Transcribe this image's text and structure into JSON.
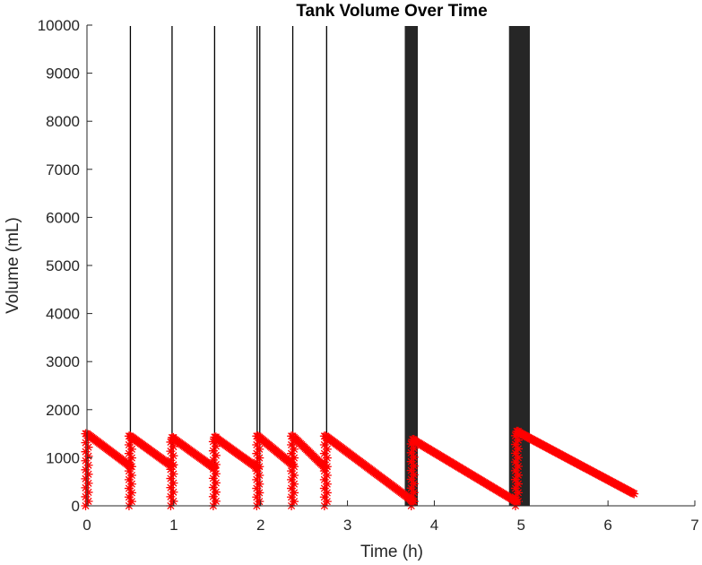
{
  "chart_data": {
    "type": "scatter",
    "title": "Tank Volume Over Time",
    "xlabel": "Time (h)",
    "ylabel": "Volume (mL)",
    "xlim": [
      0,
      7
    ],
    "ylim": [
      0,
      10000
    ],
    "xticks": [
      0,
      1,
      2,
      3,
      4,
      5,
      6,
      7
    ],
    "yticks": [
      0,
      1000,
      2000,
      3000,
      4000,
      5000,
      6000,
      7000,
      8000,
      9000,
      10000
    ],
    "grid": false,
    "legend": "none",
    "marker": "asterisk",
    "colors": {
      "series": "#ff0000",
      "fill_events": "#000000",
      "axis": "#262626"
    },
    "series": [
      {
        "segments": [
          {
            "start": [
              0.0,
              1500
            ],
            "end": [
              0.5,
              820
            ]
          },
          {
            "start": [
              0.5,
              1450
            ],
            "end": [
              0.98,
              820
            ]
          },
          {
            "start": [
              0.98,
              1420
            ],
            "end": [
              1.47,
              780
            ]
          },
          {
            "start": [
              1.47,
              1430
            ],
            "end": [
              1.97,
              780
            ]
          },
          {
            "start": [
              1.97,
              1450
            ],
            "end": [
              2.37,
              850
            ]
          },
          {
            "start": [
              2.37,
              1450
            ],
            "end": [
              2.75,
              780
            ]
          },
          {
            "start": [
              2.75,
              1450
            ],
            "end": [
              3.75,
              100
            ]
          },
          {
            "start": [
              3.75,
              1380
            ],
            "end": [
              4.95,
              80
            ]
          },
          {
            "start": [
              4.95,
              1550
            ],
            "end": [
              6.3,
              250
            ]
          }
        ],
        "drops_to_zero_at": [
          0,
          0.5,
          0.98,
          1.47,
          1.97,
          2.37,
          2.75,
          3.75,
          4.95
        ]
      }
    ],
    "fill_events": [
      {
        "type": "line",
        "x": 0.5
      },
      {
        "type": "line",
        "x": 0.98
      },
      {
        "type": "line",
        "x": 1.47
      },
      {
        "type": "line",
        "x": 1.96
      },
      {
        "type": "line",
        "x": 1.99
      },
      {
        "type": "line",
        "x": 2.37
      },
      {
        "type": "line",
        "x": 2.76
      },
      {
        "type": "band",
        "x_start": 3.66,
        "x_end": 3.81
      },
      {
        "type": "band",
        "x_start": 4.86,
        "x_end": 5.1
      }
    ]
  }
}
